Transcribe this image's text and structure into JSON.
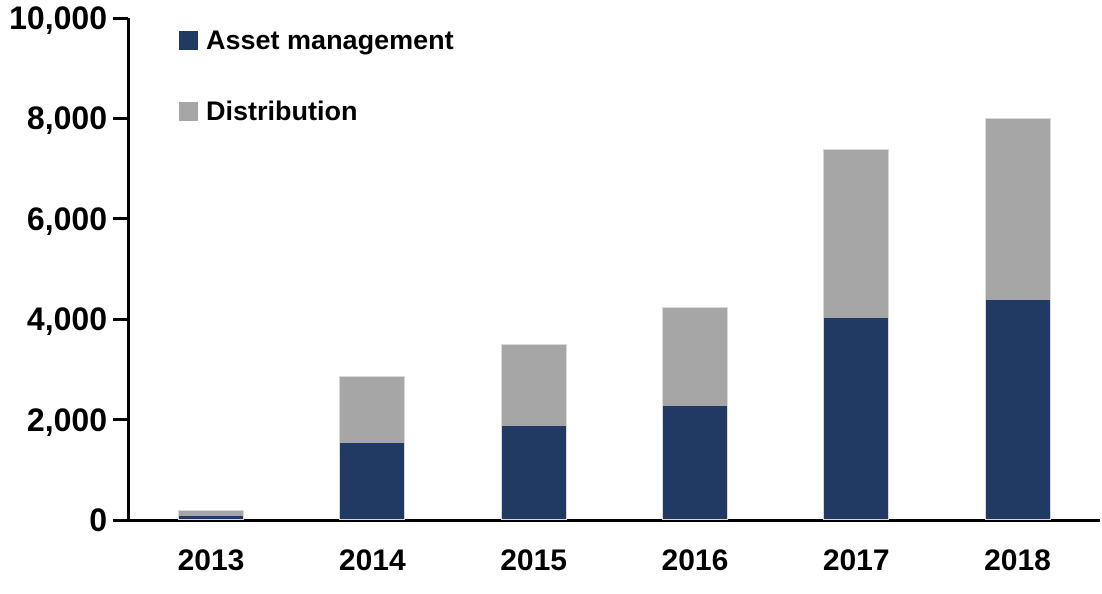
{
  "chart_data": {
    "type": "bar",
    "stacked": true,
    "title": "",
    "xlabel": "",
    "ylabel": "",
    "categories": [
      "2013",
      "2014",
      "2015",
      "2016",
      "2017",
      "2018"
    ],
    "series": [
      {
        "name": "Asset management",
        "color": "#203a63",
        "values": [
          90,
          1550,
          1900,
          2300,
          4050,
          4400
        ]
      },
      {
        "name": "Distribution",
        "color": "#a6a6a6",
        "values": [
          110,
          1320,
          1600,
          1950,
          3350,
          3600
        ]
      }
    ],
    "totals": [
      200,
      2870,
      3500,
      4250,
      7400,
      8000
    ],
    "ylim": [
      0,
      10000
    ],
    "ytick_interval": 2000,
    "yticks": [
      0,
      2000,
      4000,
      6000,
      8000,
      10000
    ],
    "ytick_labels": [
      "0",
      "2,000",
      "4,000",
      "6,000",
      "8,000",
      "10,000"
    ],
    "legend_position": "top-left",
    "grid": false,
    "axis_color": "#000000",
    "background_color": "#ffffff",
    "bar_outline_color": "#d9d9d9"
  },
  "legend": {
    "items": [
      {
        "label": "Asset management",
        "color": "#203a63"
      },
      {
        "label": "Distribution",
        "color": "#a6a6a6"
      }
    ]
  }
}
